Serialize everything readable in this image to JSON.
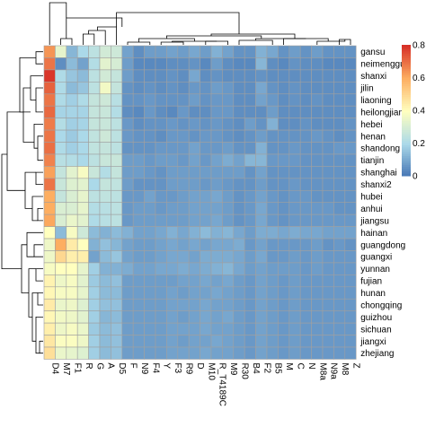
{
  "chart_data": {
    "type": "heatmap",
    "title": "",
    "xlabel": "",
    "ylabel": "",
    "clustered": true,
    "row_dendrogram": true,
    "column_dendrogram": true,
    "columns": [
      "D4",
      "M7",
      "F1",
      "R",
      "G",
      "A",
      "D5",
      "F",
      "N9",
      "F4",
      "Y",
      "F3",
      "R9",
      "D",
      "M10",
      "R_T4189C",
      "M9",
      "R30",
      "B4",
      "F2",
      "B5",
      "M",
      "C",
      "N",
      "M8a",
      "N9a",
      "M8",
      "Z"
    ],
    "rows": [
      "gansu",
      "neimenggu",
      "shanxi",
      "jilin",
      "liaoning",
      "heilongjiang",
      "hebei",
      "henan",
      "shandong",
      "tianjin",
      "shanghai",
      "shanxi2",
      "hubei",
      "anhui",
      "jiangsu",
      "hainan",
      "guangdong",
      "guangxi",
      "yunnan",
      "fujian",
      "hunan",
      "chongqing",
      "guizhou",
      "sichuan",
      "jiangxi",
      "zhejiang"
    ],
    "values": [
      [
        0.64,
        0.34,
        0.13,
        0.2,
        0.24,
        0.29,
        0.28,
        0.09,
        0.05,
        0.08,
        0.08,
        0.09,
        0.08,
        0.1,
        0.08,
        0.12,
        0.09,
        0.06,
        0.06,
        0.12,
        0.1,
        0.06,
        0.08,
        0.06,
        0.08,
        0.06,
        0.06,
        0.06
      ],
      [
        0.69,
        0.05,
        0.14,
        0.09,
        0.22,
        0.33,
        0.3,
        0.08,
        0.04,
        0.04,
        0.04,
        0.05,
        0.05,
        0.06,
        0.04,
        0.08,
        0.05,
        0.04,
        0.04,
        0.13,
        0.05,
        0.04,
        0.06,
        0.05,
        0.05,
        0.04,
        0.04,
        0.04
      ],
      [
        0.79,
        0.21,
        0.16,
        0.14,
        0.24,
        0.29,
        0.26,
        0.08,
        0.05,
        0.05,
        0.05,
        0.06,
        0.05,
        0.1,
        0.05,
        0.06,
        0.05,
        0.05,
        0.05,
        0.06,
        0.05,
        0.05,
        0.05,
        0.05,
        0.05,
        0.05,
        0.05,
        0.05
      ],
      [
        0.72,
        0.21,
        0.14,
        0.16,
        0.24,
        0.37,
        0.26,
        0.06,
        0.05,
        0.06,
        0.05,
        0.06,
        0.05,
        0.07,
        0.06,
        0.08,
        0.07,
        0.05,
        0.05,
        0.1,
        0.06,
        0.05,
        0.06,
        0.05,
        0.05,
        0.05,
        0.05,
        0.05
      ],
      [
        0.69,
        0.21,
        0.18,
        0.21,
        0.26,
        0.28,
        0.23,
        0.06,
        0.06,
        0.07,
        0.06,
        0.06,
        0.06,
        0.08,
        0.06,
        0.07,
        0.07,
        0.05,
        0.05,
        0.09,
        0.07,
        0.05,
        0.06,
        0.05,
        0.06,
        0.05,
        0.05,
        0.05
      ],
      [
        0.71,
        0.19,
        0.19,
        0.19,
        0.26,
        0.27,
        0.22,
        0.05,
        0.04,
        0.07,
        0.05,
        0.04,
        0.07,
        0.05,
        0.05,
        0.07,
        0.07,
        0.05,
        0.05,
        0.05,
        0.08,
        0.05,
        0.05,
        0.05,
        0.05,
        0.05,
        0.05,
        0.05
      ],
      [
        0.68,
        0.22,
        0.18,
        0.19,
        0.26,
        0.27,
        0.24,
        0.07,
        0.05,
        0.06,
        0.06,
        0.07,
        0.06,
        0.07,
        0.06,
        0.07,
        0.06,
        0.05,
        0.08,
        0.06,
        0.12,
        0.05,
        0.05,
        0.06,
        0.05,
        0.05,
        0.05,
        0.06
      ],
      [
        0.69,
        0.2,
        0.17,
        0.2,
        0.25,
        0.28,
        0.24,
        0.07,
        0.06,
        0.06,
        0.05,
        0.07,
        0.07,
        0.06,
        0.07,
        0.07,
        0.06,
        0.05,
        0.06,
        0.08,
        0.06,
        0.06,
        0.06,
        0.06,
        0.07,
        0.06,
        0.05,
        0.06
      ],
      [
        0.7,
        0.21,
        0.18,
        0.2,
        0.25,
        0.26,
        0.24,
        0.06,
        0.06,
        0.06,
        0.07,
        0.07,
        0.07,
        0.09,
        0.07,
        0.07,
        0.08,
        0.06,
        0.06,
        0.12,
        0.06,
        0.06,
        0.07,
        0.06,
        0.06,
        0.06,
        0.07,
        0.07
      ],
      [
        0.67,
        0.23,
        0.22,
        0.2,
        0.24,
        0.27,
        0.27,
        0.08,
        0.08,
        0.07,
        0.08,
        0.08,
        0.07,
        0.09,
        0.07,
        0.09,
        0.11,
        0.09,
        0.13,
        0.13,
        0.07,
        0.07,
        0.07,
        0.06,
        0.06,
        0.06,
        0.06,
        0.06
      ],
      [
        0.62,
        0.26,
        0.33,
        0.38,
        0.27,
        0.22,
        0.26,
        0.08,
        0.08,
        0.07,
        0.06,
        0.08,
        0.08,
        0.08,
        0.08,
        0.08,
        0.08,
        0.08,
        0.06,
        0.09,
        0.06,
        0.06,
        0.06,
        0.06,
        0.06,
        0.06,
        0.06,
        0.06
      ],
      [
        0.69,
        0.27,
        0.32,
        0.33,
        0.2,
        0.26,
        0.25,
        0.08,
        0.06,
        0.06,
        0.06,
        0.08,
        0.08,
        0.08,
        0.07,
        0.08,
        0.07,
        0.06,
        0.06,
        0.08,
        0.06,
        0.06,
        0.07,
        0.06,
        0.06,
        0.06,
        0.06,
        0.06
      ],
      [
        0.6,
        0.26,
        0.31,
        0.34,
        0.24,
        0.25,
        0.24,
        0.07,
        0.07,
        0.09,
        0.07,
        0.07,
        0.08,
        0.09,
        0.09,
        0.1,
        0.08,
        0.06,
        0.07,
        0.09,
        0.07,
        0.06,
        0.07,
        0.07,
        0.06,
        0.06,
        0.06,
        0.06
      ],
      [
        0.6,
        0.31,
        0.31,
        0.34,
        0.22,
        0.23,
        0.24,
        0.07,
        0.08,
        0.08,
        0.07,
        0.08,
        0.08,
        0.09,
        0.09,
        0.09,
        0.08,
        0.06,
        0.07,
        0.1,
        0.07,
        0.06,
        0.07,
        0.07,
        0.07,
        0.07,
        0.06,
        0.06
      ],
      [
        0.61,
        0.31,
        0.35,
        0.33,
        0.21,
        0.23,
        0.24,
        0.07,
        0.08,
        0.08,
        0.08,
        0.08,
        0.08,
        0.09,
        0.09,
        0.1,
        0.08,
        0.06,
        0.07,
        0.1,
        0.07,
        0.06,
        0.07,
        0.07,
        0.07,
        0.07,
        0.07,
        0.07
      ],
      [
        0.4,
        0.14,
        0.38,
        0.28,
        0.14,
        0.12,
        0.14,
        0.12,
        0.09,
        0.09,
        0.1,
        0.12,
        0.1,
        0.12,
        0.14,
        0.12,
        0.13,
        0.1,
        0.08,
        0.11,
        0.11,
        0.1,
        0.11,
        0.1,
        0.1,
        0.09,
        0.09,
        0.09
      ],
      [
        0.36,
        0.6,
        0.45,
        0.4,
        0.12,
        0.15,
        0.13,
        0.09,
        0.08,
        0.08,
        0.09,
        0.1,
        0.09,
        0.1,
        0.09,
        0.1,
        0.1,
        0.11,
        0.07,
        0.09,
        0.07,
        0.07,
        0.07,
        0.07,
        0.08,
        0.06,
        0.07,
        0.06
      ],
      [
        0.36,
        0.5,
        0.44,
        0.44,
        0.09,
        0.14,
        0.16,
        0.09,
        0.08,
        0.08,
        0.09,
        0.1,
        0.1,
        0.09,
        0.11,
        0.11,
        0.11,
        0.1,
        0.08,
        0.1,
        0.07,
        0.07,
        0.08,
        0.07,
        0.08,
        0.07,
        0.07,
        0.07
      ],
      [
        0.38,
        0.4,
        0.4,
        0.34,
        0.18,
        0.12,
        0.12,
        0.11,
        0.09,
        0.09,
        0.1,
        0.1,
        0.11,
        0.1,
        0.11,
        0.12,
        0.13,
        0.1,
        0.08,
        0.09,
        0.08,
        0.08,
        0.08,
        0.07,
        0.08,
        0.07,
        0.07,
        0.07
      ],
      [
        0.43,
        0.36,
        0.38,
        0.33,
        0.17,
        0.14,
        0.15,
        0.08,
        0.08,
        0.08,
        0.08,
        0.08,
        0.09,
        0.09,
        0.1,
        0.09,
        0.1,
        0.08,
        0.07,
        0.09,
        0.08,
        0.07,
        0.08,
        0.07,
        0.07,
        0.07,
        0.07,
        0.07
      ],
      [
        0.42,
        0.38,
        0.38,
        0.34,
        0.18,
        0.14,
        0.14,
        0.08,
        0.08,
        0.08,
        0.08,
        0.09,
        0.08,
        0.09,
        0.09,
        0.1,
        0.09,
        0.08,
        0.07,
        0.09,
        0.08,
        0.07,
        0.08,
        0.07,
        0.07,
        0.07,
        0.07,
        0.07
      ],
      [
        0.45,
        0.35,
        0.36,
        0.32,
        0.18,
        0.15,
        0.15,
        0.08,
        0.08,
        0.08,
        0.08,
        0.09,
        0.09,
        0.09,
        0.1,
        0.09,
        0.09,
        0.08,
        0.07,
        0.09,
        0.08,
        0.07,
        0.08,
        0.07,
        0.07,
        0.07,
        0.07,
        0.07
      ],
      [
        0.42,
        0.37,
        0.36,
        0.33,
        0.18,
        0.13,
        0.14,
        0.08,
        0.08,
        0.08,
        0.08,
        0.09,
        0.08,
        0.09,
        0.1,
        0.09,
        0.1,
        0.08,
        0.07,
        0.09,
        0.08,
        0.07,
        0.08,
        0.07,
        0.07,
        0.07,
        0.07,
        0.07
      ],
      [
        0.44,
        0.36,
        0.38,
        0.35,
        0.17,
        0.14,
        0.15,
        0.08,
        0.08,
        0.08,
        0.08,
        0.09,
        0.09,
        0.09,
        0.1,
        0.09,
        0.09,
        0.08,
        0.07,
        0.09,
        0.08,
        0.07,
        0.08,
        0.07,
        0.07,
        0.07,
        0.07,
        0.07
      ],
      [
        0.46,
        0.39,
        0.39,
        0.36,
        0.18,
        0.14,
        0.15,
        0.08,
        0.08,
        0.08,
        0.08,
        0.09,
        0.08,
        0.09,
        0.09,
        0.1,
        0.09,
        0.08,
        0.07,
        0.09,
        0.08,
        0.07,
        0.08,
        0.07,
        0.07,
        0.07,
        0.07,
        0.07
      ],
      [
        0.48,
        0.35,
        0.34,
        0.32,
        0.18,
        0.14,
        0.15,
        0.08,
        0.08,
        0.08,
        0.08,
        0.09,
        0.09,
        0.09,
        0.1,
        0.09,
        0.09,
        0.08,
        0.07,
        0.09,
        0.08,
        0.07,
        0.08,
        0.07,
        0.07,
        0.07,
        0.07,
        0.07
      ]
    ],
    "color_scale": {
      "range": [
        0,
        0.8
      ],
      "stops": [
        {
          "value": 0.0,
          "color": "#4575b4"
        },
        {
          "value": 0.2,
          "color": "#abd9e9"
        },
        {
          "value": 0.4,
          "color": "#ffffbf"
        },
        {
          "value": 0.6,
          "color": "#fdae61"
        },
        {
          "value": 0.8,
          "color": "#d73027"
        }
      ]
    },
    "colorbar_ticks": [
      "0",
      "0.2",
      "0.4",
      "0.6",
      "0.8"
    ],
    "cell_border_color": "#a0a0a0",
    "legend_position": "right"
  }
}
